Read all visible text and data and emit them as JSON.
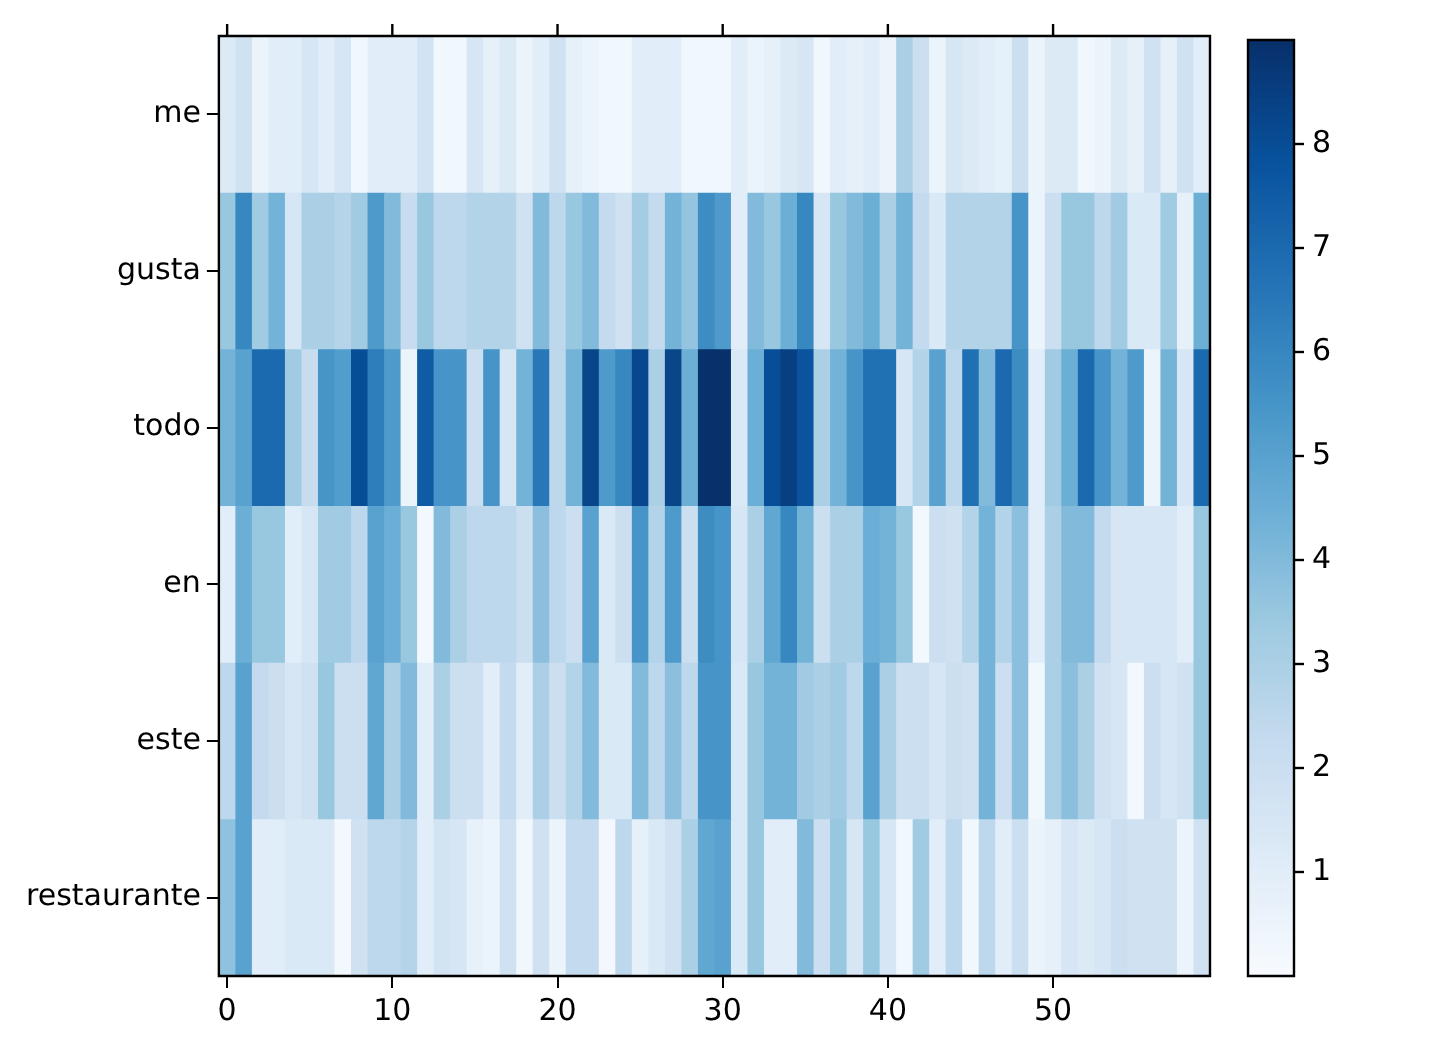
{
  "chart_data": {
    "type": "heatmap",
    "x": [
      0,
      1,
      2,
      3,
      4,
      5,
      6,
      7,
      8,
      9,
      10,
      11,
      12,
      13,
      14,
      15,
      16,
      17,
      18,
      19,
      20,
      21,
      22,
      23,
      24,
      25,
      26,
      27,
      28,
      29,
      30,
      31,
      32,
      33,
      34,
      35,
      36,
      37,
      38,
      39,
      40,
      41,
      42,
      43,
      44,
      45,
      46,
      47,
      48,
      49,
      50,
      51,
      52,
      53,
      54,
      55,
      56,
      57,
      58,
      59
    ],
    "xlim": [
      -0.5,
      59.5
    ],
    "xticks": [
      0,
      10,
      20,
      30,
      40,
      50
    ],
    "y_categories": [
      "me",
      "gusta",
      "todo",
      "en",
      "este",
      "restaurante"
    ],
    "cells": [
      [
        1.2,
        1.8,
        0.5,
        1.0,
        1.0,
        1.5,
        1.0,
        1.5,
        0.3,
        1.0,
        1.0,
        1.0,
        1.7,
        0.3,
        0.3,
        1.5,
        0.8,
        1.2,
        0.5,
        1.0,
        1.8,
        0.8,
        0.5,
        0.3,
        0.3,
        1.0,
        1.0,
        1.0,
        0.3,
        0.3,
        0.3,
        1.0,
        0.5,
        0.8,
        1.2,
        1.5,
        0.3,
        1.0,
        0.8,
        1.0,
        0.5,
        3.0,
        2.0,
        0.5,
        1.5,
        1.2,
        1.0,
        0.8,
        2.0,
        0.5,
        1.2,
        1.2,
        0.3,
        0.5,
        1.2,
        0.8,
        1.8,
        0.8,
        1.8,
        1.0
      ],
      [
        3.5,
        6.0,
        3.3,
        4.3,
        1.5,
        3.0,
        3.0,
        2.7,
        3.3,
        5.3,
        4.0,
        2.2,
        3.5,
        2.5,
        2.5,
        2.8,
        2.8,
        2.8,
        1.8,
        4.0,
        2.5,
        3.5,
        4.0,
        2.3,
        1.8,
        3.2,
        2.3,
        4.3,
        3.6,
        5.8,
        5.3,
        1.0,
        4.0,
        3.5,
        4.5,
        6.0,
        1.5,
        3.5,
        4.0,
        4.5,
        3.0,
        4.3,
        2.3,
        1.3,
        2.8,
        2.8,
        2.8,
        2.8,
        5.5,
        0.5,
        2.0,
        3.5,
        3.5,
        2.5,
        3.3,
        1.3,
        1.3,
        3.3,
        0.8,
        4.5
      ],
      [
        4.3,
        5.0,
        7.0,
        7.0,
        3.3,
        2.2,
        5.5,
        5.2,
        8.0,
        6.3,
        5.3,
        0.5,
        7.5,
        5.5,
        5.5,
        2.0,
        5.5,
        1.5,
        4.3,
        6.5,
        2.5,
        4.3,
        8.3,
        5.3,
        6.0,
        8.2,
        3.0,
        8.3,
        4.5,
        9.0,
        9.0,
        1.3,
        4.5,
        8.0,
        8.5,
        7.8,
        3.0,
        4.3,
        5.5,
        6.8,
        6.8,
        1.5,
        2.8,
        5.0,
        2.5,
        6.8,
        4.0,
        7.0,
        5.8,
        1.0,
        3.3,
        4.5,
        7.0,
        5.5,
        4.3,
        5.3,
        0.5,
        4.3,
        1.5,
        7.0
      ],
      [
        1.0,
        4.5,
        3.5,
        3.5,
        1.0,
        1.5,
        3.3,
        3.3,
        2.5,
        5.0,
        4.5,
        3.5,
        0.2,
        4.0,
        3.0,
        2.5,
        2.5,
        2.5,
        2.0,
        3.8,
        2.5,
        2.0,
        5.0,
        1.3,
        2.0,
        5.5,
        2.8,
        5.3,
        2.0,
        5.8,
        5.5,
        1.5,
        3.0,
        4.8,
        6.0,
        4.3,
        2.0,
        3.0,
        3.0,
        4.5,
        4.3,
        3.5,
        0.2,
        2.0,
        1.8,
        2.8,
        4.3,
        2.8,
        3.8,
        1.0,
        3.0,
        4.0,
        4.0,
        2.3,
        1.5,
        1.5,
        1.5,
        1.5,
        1.0,
        3.5
      ],
      [
        2.5,
        5.0,
        2.3,
        2.0,
        1.5,
        1.8,
        3.5,
        2.0,
        2.0,
        4.8,
        3.0,
        4.0,
        1.0,
        3.0,
        2.0,
        2.0,
        1.0,
        2.3,
        1.0,
        3.0,
        2.0,
        2.8,
        4.0,
        1.3,
        1.3,
        4.0,
        2.5,
        3.8,
        2.5,
        5.5,
        5.5,
        1.3,
        3.5,
        4.3,
        4.3,
        3.3,
        3.0,
        3.3,
        2.5,
        5.0,
        3.0,
        2.0,
        2.0,
        1.5,
        2.0,
        1.8,
        4.3,
        2.0,
        3.8,
        0.3,
        3.0,
        3.8,
        3.0,
        1.8,
        1.5,
        0.2,
        2.0,
        1.5,
        1.8,
        3.5
      ],
      [
        3.7,
        5.0,
        1.0,
        1.0,
        1.3,
        1.3,
        1.3,
        0.2,
        1.8,
        2.5,
        2.5,
        2.7,
        1.0,
        1.7,
        1.5,
        0.7,
        0.5,
        1.8,
        0.3,
        1.8,
        0.5,
        2.3,
        2.3,
        0.2,
        2.5,
        0.8,
        1.3,
        1.8,
        3.0,
        4.8,
        5.0,
        1.3,
        3.5,
        1.0,
        1.0,
        4.0,
        2.0,
        3.5,
        1.5,
        3.5,
        1.5,
        0.3,
        3.3,
        1.0,
        2.5,
        0.3,
        2.5,
        1.0,
        2.0,
        0.5,
        0.8,
        1.5,
        1.2,
        1.5,
        2.0,
        1.8,
        1.8,
        1.8,
        0.5,
        1.8
      ]
    ],
    "clim": [
      0,
      9
    ],
    "cticks": [
      1,
      2,
      3,
      4,
      5,
      6,
      7,
      8
    ]
  }
}
